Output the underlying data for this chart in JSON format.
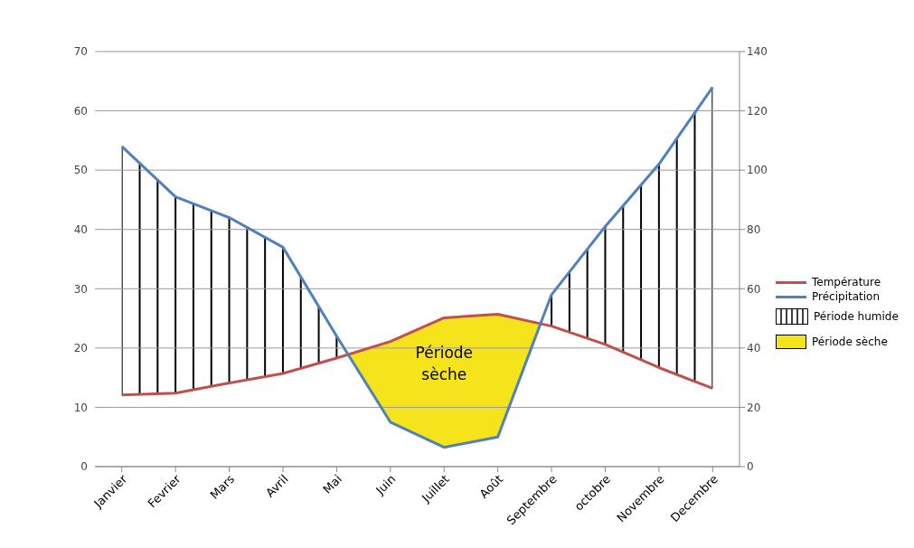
{
  "chart_data": {
    "type": "line",
    "categories": [
      "Janvier",
      "Fevrier",
      "Mars",
      "Avril",
      "Mai",
      "Juin",
      "Juillet",
      "Août",
      "Septembre",
      "octobre",
      "Novembre",
      "Decembre"
    ],
    "series": [
      {
        "name": "Température",
        "color": "#c0504d",
        "values": [
          12.1,
          12.4,
          14.1,
          15.7,
          18.3,
          21.1,
          25.1,
          25.7,
          23.7,
          20.6,
          16.7,
          13.2
        ]
      },
      {
        "name": "Précipitation",
        "color": "#4f81bd",
        "axis": "y2",
        "values": [
          108,
          91,
          84,
          74,
          44,
          15,
          6.5,
          10,
          58,
          81,
          102,
          128
        ]
      }
    ],
    "ylim": [
      0,
      70
    ],
    "yticks": [
      0,
      10,
      20,
      30,
      40,
      50,
      60,
      70
    ],
    "y2lim": [
      0,
      140
    ],
    "y2ticks": [
      0,
      20,
      40,
      60,
      80,
      100,
      120,
      140
    ],
    "annotations": [
      "Période humide",
      "Période sèche",
      "Période sèche"
    ],
    "grid": "y",
    "legend": "right",
    "marker": "none",
    "line_style": "solid"
  }
}
